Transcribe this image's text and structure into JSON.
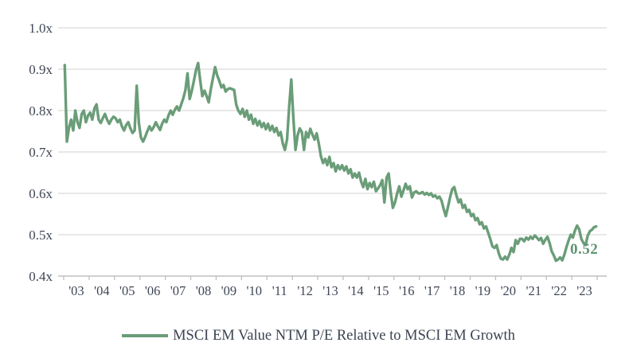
{
  "chart_data": {
    "type": "line",
    "title": "",
    "legend": [
      "MSCI EM Value NTM P/E Relative to MSCI EM Growth"
    ],
    "last_value_label": "0.52",
    "ylim": [
      0.4,
      1.0
    ],
    "y_tick_step": 0.1,
    "y_tick_labels": [
      "1.0x",
      "0.9x",
      "0.8x",
      "0.7x",
      "0.6x",
      "0.5x",
      "0.4x"
    ],
    "x_tick_labels": [
      "'03",
      "'04",
      "'05",
      "'06",
      "'07",
      "'08",
      "'09",
      "'10",
      "'11",
      "'12",
      "'13",
      "'14",
      "'15",
      "'16",
      "'17",
      "'18",
      "'19",
      "'20",
      "'21",
      "'22",
      "'23"
    ],
    "x_frequency": "monthly",
    "x_range_note": "Jan 2003 through Dec 2023",
    "grid": "horizontal-only",
    "legend_position": "bottom-center",
    "colors": {
      "line": "#6a9d78",
      "last_value": "#5e9570",
      "grid": "#d9d9d9",
      "axis": "#bfbfbf",
      "text": "#3f4756"
    },
    "series": [
      {
        "name": "MSCI EM Value NTM P/E Relative to MSCI EM Growth",
        "values": [
          0.91,
          0.725,
          0.758,
          0.778,
          0.752,
          0.8,
          0.772,
          0.758,
          0.792,
          0.8,
          0.772,
          0.788,
          0.795,
          0.778,
          0.805,
          0.815,
          0.778,
          0.77,
          0.782,
          0.792,
          0.778,
          0.768,
          0.778,
          0.785,
          0.782,
          0.772,
          0.778,
          0.762,
          0.752,
          0.765,
          0.772,
          0.757,
          0.746,
          0.752,
          0.86,
          0.77,
          0.735,
          0.725,
          0.737,
          0.75,
          0.762,
          0.752,
          0.76,
          0.772,
          0.762,
          0.753,
          0.768,
          0.778,
          0.772,
          0.788,
          0.8,
          0.79,
          0.802,
          0.81,
          0.8,
          0.815,
          0.83,
          0.85,
          0.89,
          0.828,
          0.848,
          0.872,
          0.898,
          0.915,
          0.872,
          0.835,
          0.848,
          0.835,
          0.82,
          0.852,
          0.878,
          0.905,
          0.885,
          0.872,
          0.856,
          0.862,
          0.846,
          0.852,
          0.854,
          0.852,
          0.85,
          0.814,
          0.8,
          0.792,
          0.804,
          0.785,
          0.8,
          0.778,
          0.79,
          0.768,
          0.78,
          0.764,
          0.775,
          0.76,
          0.77,
          0.755,
          0.768,
          0.752,
          0.763,
          0.748,
          0.758,
          0.74,
          0.748,
          0.72,
          0.705,
          0.73,
          0.81,
          0.875,
          0.78,
          0.705,
          0.74,
          0.757,
          0.748,
          0.705,
          0.748,
          0.735,
          0.756,
          0.742,
          0.73,
          0.745,
          0.72,
          0.69,
          0.673,
          0.683,
          0.668,
          0.688,
          0.663,
          0.673,
          0.653,
          0.668,
          0.658,
          0.668,
          0.655,
          0.665,
          0.648,
          0.658,
          0.638,
          0.648,
          0.638,
          0.65,
          0.628,
          0.615,
          0.635,
          0.61,
          0.625,
          0.615,
          0.628,
          0.605,
          0.612,
          0.62,
          0.632,
          0.578,
          0.638,
          0.648,
          0.6,
          0.565,
          0.578,
          0.6,
          0.617,
          0.592,
          0.607,
          0.623,
          0.61,
          0.617,
          0.59,
          0.602,
          0.605,
          0.6,
          0.6,
          0.603,
          0.597,
          0.601,
          0.596,
          0.6,
          0.592,
          0.595,
          0.588,
          0.592,
          0.582,
          0.562,
          0.545,
          0.567,
          0.59,
          0.61,
          0.615,
          0.595,
          0.578,
          0.585,
          0.565,
          0.572,
          0.555,
          0.56,
          0.545,
          0.55,
          0.535,
          0.54,
          0.525,
          0.53,
          0.515,
          0.52,
          0.505,
          0.49,
          0.472,
          0.468,
          0.475,
          0.455,
          0.442,
          0.44,
          0.447,
          0.44,
          0.452,
          0.468,
          0.458,
          0.487,
          0.478,
          0.49,
          0.49,
          0.484,
          0.493,
          0.488,
          0.495,
          0.49,
          0.498,
          0.493,
          0.487,
          0.492,
          0.478,
          0.488,
          0.495,
          0.48,
          0.46,
          0.45,
          0.437,
          0.44,
          0.445,
          0.438,
          0.452,
          0.47,
          0.486,
          0.5,
          0.493,
          0.51,
          0.522,
          0.513,
          0.49,
          0.48,
          0.475,
          0.497,
          0.508,
          0.512,
          0.518,
          0.52
        ]
      }
    ]
  }
}
